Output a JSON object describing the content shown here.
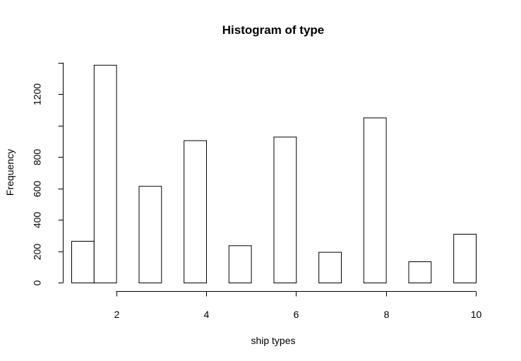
{
  "chart_data": {
    "type": "bar",
    "title": "Histogram of type",
    "xlabel": "ship types",
    "ylabel": "Frequency",
    "bins": [
      {
        "x0": 1.0,
        "x1": 1.5,
        "count": 265
      },
      {
        "x0": 1.5,
        "x1": 2.0,
        "count": 1385
      },
      {
        "x0": 2.0,
        "x1": 2.5,
        "count": 0
      },
      {
        "x0": 2.5,
        "x1": 3.0,
        "count": 615
      },
      {
        "x0": 3.0,
        "x1": 3.5,
        "count": 0
      },
      {
        "x0": 3.5,
        "x1": 4.0,
        "count": 905
      },
      {
        "x0": 4.0,
        "x1": 4.5,
        "count": 0
      },
      {
        "x0": 4.5,
        "x1": 5.0,
        "count": 237
      },
      {
        "x0": 5.0,
        "x1": 5.5,
        "count": 0
      },
      {
        "x0": 5.5,
        "x1": 6.0,
        "count": 928
      },
      {
        "x0": 6.0,
        "x1": 6.5,
        "count": 0
      },
      {
        "x0": 6.5,
        "x1": 7.0,
        "count": 195
      },
      {
        "x0": 7.0,
        "x1": 7.5,
        "count": 0
      },
      {
        "x0": 7.5,
        "x1": 8.0,
        "count": 1050
      },
      {
        "x0": 8.0,
        "x1": 8.5,
        "count": 0
      },
      {
        "x0": 8.5,
        "x1": 9.0,
        "count": 135
      },
      {
        "x0": 9.0,
        "x1": 9.5,
        "count": 0
      },
      {
        "x0": 9.5,
        "x1": 10.0,
        "count": 310
      }
    ],
    "xticks": [
      2,
      4,
      6,
      8,
      10
    ],
    "xtick_labels": [
      "2",
      "4",
      "6",
      "8",
      "10"
    ],
    "yticks": [
      0,
      200,
      400,
      600,
      800,
      1000,
      1200,
      1400
    ],
    "ytick_labels": [
      "0",
      "200",
      "400",
      "600",
      "800",
      "",
      "1200",
      ""
    ],
    "xlim": [
      1,
      10
    ],
    "ylim": [
      0,
      1400
    ],
    "grid": false
  }
}
